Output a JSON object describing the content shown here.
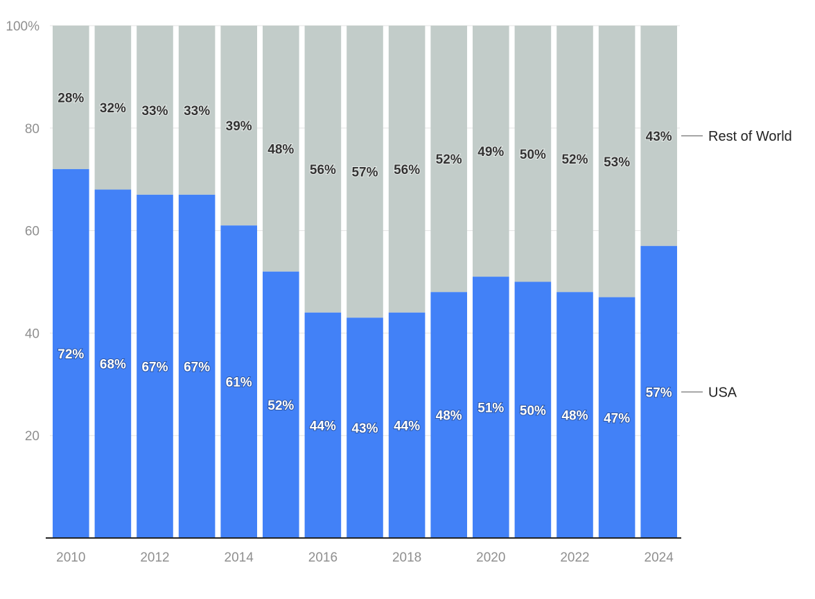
{
  "chart_data": {
    "type": "bar",
    "stacked": true,
    "title": "",
    "xlabel": "",
    "ylabel": "",
    "ylim": [
      0,
      100
    ],
    "y_ticks": [
      20,
      40,
      60,
      80,
      100
    ],
    "y_tick_labels": [
      "20",
      "40",
      "60",
      "80",
      "100%"
    ],
    "x_tick_labels": [
      "2010",
      "2012",
      "2014",
      "2016",
      "2018",
      "2020",
      "2022",
      "2024"
    ],
    "categories": [
      "2010",
      "2011",
      "2012",
      "2013",
      "2014",
      "2015",
      "2016",
      "2017",
      "2018",
      "2019",
      "2020",
      "2021",
      "2022",
      "2023",
      "2024"
    ],
    "series": [
      {
        "name": "USA",
        "color": "#4281f7",
        "values": [
          72,
          68,
          67,
          67,
          61,
          52,
          44,
          43,
          44,
          48,
          51,
          50,
          48,
          47,
          57
        ],
        "labels": [
          "72%",
          "68%",
          "67%",
          "67%",
          "61%",
          "52%",
          "44%",
          "43%",
          "44%",
          "48%",
          "51%",
          "50%",
          "48%",
          "47%",
          "57%"
        ]
      },
      {
        "name": "Rest of World",
        "color": "#c2ccc9",
        "values": [
          28,
          32,
          33,
          33,
          39,
          48,
          56,
          57,
          56,
          52,
          49,
          50,
          52,
          53,
          43
        ],
        "labels": [
          "28%",
          "32%",
          "33%",
          "33%",
          "39%",
          "48%",
          "56%",
          "57%",
          "56%",
          "52%",
          "49%",
          "50%",
          "52%",
          "53%",
          "43%"
        ]
      }
    ],
    "grid": true,
    "legend_placement": "right"
  }
}
